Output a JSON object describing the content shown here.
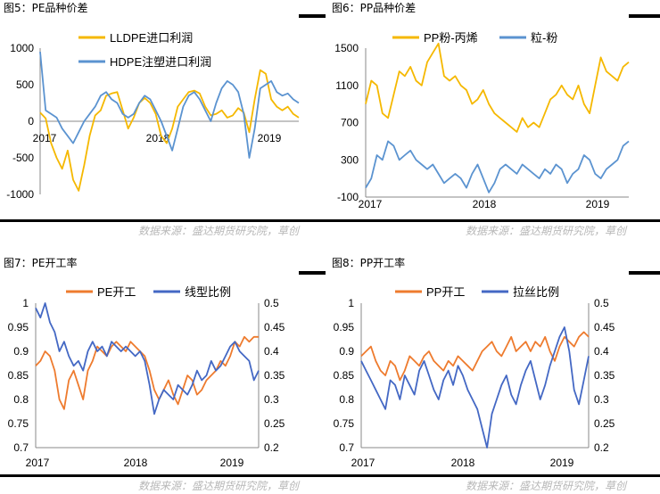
{
  "figures": [
    {
      "title": "图5：PE品种价差"
    },
    {
      "title": "图6：PP品种价差"
    },
    {
      "title": "图7：PE开工率"
    },
    {
      "title": "图8：PP开工率"
    }
  ],
  "source_text": "数据来源：盛达期货研究院，草创",
  "colors": {
    "gold": "#F5B800",
    "blue": "#5B93D0",
    "orange": "#EE7B2E",
    "navy": "#4468C4"
  },
  "chart_data": [
    {
      "type": "line",
      "xlabels": [
        "2017",
        "2018",
        "2019"
      ],
      "yticks": [
        "1000",
        "500",
        "0",
        "-500",
        "-1000"
      ],
      "ylim": [
        -1000,
        1000
      ],
      "x_range": [
        2017.0,
        2019.35
      ],
      "series": [
        {
          "name": "LLDPE进口利润",
          "color": "gold",
          "x": [
            2017.0,
            2017.05,
            2017.1,
            2017.15,
            2017.2,
            2017.25,
            2017.3,
            2017.35,
            2017.4,
            2017.45,
            2017.5,
            2017.55,
            2017.6,
            2017.65,
            2017.7,
            2017.75,
            2017.8,
            2017.85,
            2017.9,
            2017.95,
            2018.0,
            2018.05,
            2018.1,
            2018.15,
            2018.2,
            2018.25,
            2018.3,
            2018.35,
            2018.4,
            2018.45,
            2018.5,
            2018.55,
            2018.6,
            2018.65,
            2018.7,
            2018.75,
            2018.8,
            2018.85,
            2018.9,
            2018.95,
            2019.0,
            2019.05,
            2019.1,
            2019.15,
            2019.2,
            2019.25,
            2019.3,
            2019.35
          ],
          "y": [
            120,
            40,
            -300,
            -500,
            -650,
            -400,
            -800,
            -950,
            -600,
            -200,
            80,
            150,
            350,
            380,
            400,
            150,
            -100,
            50,
            250,
            320,
            250,
            100,
            -200,
            -300,
            -100,
            200,
            300,
            400,
            420,
            380,
            200,
            80,
            100,
            150,
            50,
            80,
            180,
            120,
            -150,
            300,
            700,
            650,
            300,
            200,
            150,
            200,
            100,
            50
          ]
        },
        {
          "name": "HDPE注塑进口利润",
          "color": "blue",
          "x": [
            2017.0,
            2017.05,
            2017.1,
            2017.15,
            2017.2,
            2017.25,
            2017.3,
            2017.35,
            2017.4,
            2017.45,
            2017.5,
            2017.55,
            2017.6,
            2017.65,
            2017.7,
            2017.75,
            2017.8,
            2017.85,
            2017.9,
            2017.95,
            2018.0,
            2018.05,
            2018.1,
            2018.15,
            2018.2,
            2018.25,
            2018.3,
            2018.35,
            2018.4,
            2018.45,
            2018.5,
            2018.55,
            2018.6,
            2018.65,
            2018.7,
            2018.75,
            2018.8,
            2018.85,
            2018.9,
            2018.95,
            2019.0,
            2019.05,
            2019.1,
            2019.15,
            2019.2,
            2019.25,
            2019.3,
            2019.35
          ],
          "y": [
            950,
            150,
            100,
            50,
            -100,
            -200,
            -300,
            -150,
            0,
            100,
            200,
            350,
            400,
            300,
            250,
            100,
            50,
            100,
            250,
            350,
            300,
            150,
            0,
            -200,
            -400,
            -100,
            200,
            350,
            400,
            300,
            150,
            0,
            250,
            450,
            550,
            500,
            400,
            100,
            -500,
            -100,
            450,
            500,
            550,
            400,
            350,
            380,
            300,
            250
          ]
        }
      ]
    },
    {
      "type": "line",
      "xlabels": [
        "2017",
        "2018",
        "2019"
      ],
      "yticks": [
        "1500",
        "1100",
        "700",
        "300",
        "-100"
      ],
      "ylim": [
        -100,
        1500
      ],
      "x_range": [
        2017.0,
        2019.35
      ],
      "series": [
        {
          "name": "PP粉-丙烯",
          "color": "gold",
          "x": [
            2017.0,
            2017.05,
            2017.1,
            2017.15,
            2017.2,
            2017.25,
            2017.3,
            2017.35,
            2017.4,
            2017.45,
            2017.5,
            2017.55,
            2017.6,
            2017.65,
            2017.7,
            2017.75,
            2017.8,
            2017.85,
            2017.9,
            2017.95,
            2018.0,
            2018.05,
            2018.1,
            2018.15,
            2018.2,
            2018.25,
            2018.3,
            2018.35,
            2018.4,
            2018.45,
            2018.5,
            2018.55,
            2018.6,
            2018.65,
            2018.7,
            2018.75,
            2018.8,
            2018.85,
            2018.9,
            2018.95,
            2019.0,
            2019.05,
            2019.1,
            2019.15,
            2019.2,
            2019.25,
            2019.3,
            2019.35
          ],
          "y": [
            900,
            1150,
            1100,
            800,
            750,
            1000,
            1250,
            1200,
            1300,
            1150,
            1100,
            1350,
            1450,
            1550,
            1200,
            1150,
            1200,
            1100,
            1050,
            900,
            950,
            1050,
            900,
            800,
            750,
            700,
            650,
            600,
            750,
            650,
            700,
            650,
            800,
            950,
            1000,
            1100,
            1000,
            950,
            1100,
            900,
            800,
            1100,
            1400,
            1250,
            1200,
            1150,
            1300,
            1350
          ]
        },
        {
          "name": "粒-粉",
          "color": "blue",
          "x": [
            2017.0,
            2017.05,
            2017.1,
            2017.15,
            2017.2,
            2017.25,
            2017.3,
            2017.35,
            2017.4,
            2017.45,
            2017.5,
            2017.55,
            2017.6,
            2017.65,
            2017.7,
            2017.75,
            2017.8,
            2017.85,
            2017.9,
            2017.95,
            2018.0,
            2018.05,
            2018.1,
            2018.15,
            2018.2,
            2018.25,
            2018.3,
            2018.35,
            2018.4,
            2018.45,
            2018.5,
            2018.55,
            2018.6,
            2018.65,
            2018.7,
            2018.75,
            2018.8,
            2018.85,
            2018.9,
            2018.95,
            2019.0,
            2019.05,
            2019.1,
            2019.15,
            2019.2,
            2019.25,
            2019.3,
            2019.35
          ],
          "y": [
            0,
            100,
            350,
            300,
            500,
            450,
            300,
            350,
            400,
            300,
            250,
            200,
            250,
            150,
            50,
            100,
            150,
            100,
            0,
            150,
            250,
            100,
            -50,
            50,
            200,
            250,
            200,
            150,
            250,
            200,
            150,
            100,
            200,
            150,
            250,
            200,
            50,
            150,
            200,
            350,
            300,
            150,
            100,
            200,
            250,
            300,
            450,
            500
          ]
        }
      ]
    },
    {
      "type": "line",
      "xlabels": [
        "2017",
        "2018",
        "2019"
      ],
      "yticks": [
        "1",
        "0.95",
        "0.9",
        "0.85",
        "0.8",
        "0.75",
        "0.7"
      ],
      "yticks_right": [
        "0.5",
        "0.45",
        "0.4",
        "0.35",
        "0.3",
        "0.25",
        "0.2"
      ],
      "ylim": [
        0.7,
        1.0
      ],
      "ylim_right": [
        0.2,
        0.5
      ],
      "x_range": [
        2017.0,
        2019.35
      ],
      "series": [
        {
          "name": "PE开工",
          "color": "orange",
          "axis": "left",
          "x": [
            2017.0,
            2017.05,
            2017.1,
            2017.15,
            2017.2,
            2017.25,
            2017.3,
            2017.35,
            2017.4,
            2017.45,
            2017.5,
            2017.55,
            2017.6,
            2017.65,
            2017.7,
            2017.75,
            2017.8,
            2017.85,
            2017.9,
            2017.95,
            2018.0,
            2018.05,
            2018.1,
            2018.15,
            2018.2,
            2018.25,
            2018.3,
            2018.35,
            2018.4,
            2018.45,
            2018.5,
            2018.55,
            2018.6,
            2018.65,
            2018.7,
            2018.75,
            2018.8,
            2018.85,
            2018.9,
            2018.95,
            2019.0,
            2019.05,
            2019.1,
            2019.15,
            2019.2,
            2019.25,
            2019.3,
            2019.35
          ],
          "y": [
            0.87,
            0.88,
            0.9,
            0.89,
            0.86,
            0.8,
            0.78,
            0.84,
            0.86,
            0.83,
            0.8,
            0.86,
            0.88,
            0.91,
            0.9,
            0.89,
            0.91,
            0.92,
            0.91,
            0.9,
            0.92,
            0.91,
            0.9,
            0.89,
            0.86,
            0.82,
            0.8,
            0.82,
            0.84,
            0.81,
            0.79,
            0.82,
            0.85,
            0.84,
            0.81,
            0.82,
            0.84,
            0.85,
            0.86,
            0.88,
            0.87,
            0.89,
            0.92,
            0.91,
            0.93,
            0.92,
            0.93,
            0.93
          ]
        },
        {
          "name": "线型比例",
          "color": "navy",
          "axis": "right",
          "x": [
            2017.0,
            2017.05,
            2017.1,
            2017.15,
            2017.2,
            2017.25,
            2017.3,
            2017.35,
            2017.4,
            2017.45,
            2017.5,
            2017.55,
            2017.6,
            2017.65,
            2017.7,
            2017.75,
            2017.8,
            2017.85,
            2017.9,
            2017.95,
            2018.0,
            2018.05,
            2018.1,
            2018.15,
            2018.2,
            2018.25,
            2018.3,
            2018.35,
            2018.4,
            2018.45,
            2018.5,
            2018.55,
            2018.6,
            2018.65,
            2018.7,
            2018.75,
            2018.8,
            2018.85,
            2018.9,
            2018.95,
            2019.0,
            2019.05,
            2019.1,
            2019.15,
            2019.2,
            2019.25,
            2019.3,
            2019.35
          ],
          "y": [
            0.49,
            0.47,
            0.5,
            0.46,
            0.44,
            0.4,
            0.42,
            0.39,
            0.37,
            0.38,
            0.36,
            0.4,
            0.42,
            0.4,
            0.41,
            0.39,
            0.42,
            0.41,
            0.4,
            0.41,
            0.4,
            0.39,
            0.4,
            0.38,
            0.33,
            0.27,
            0.3,
            0.32,
            0.31,
            0.3,
            0.33,
            0.32,
            0.31,
            0.33,
            0.36,
            0.34,
            0.35,
            0.38,
            0.36,
            0.37,
            0.39,
            0.41,
            0.42,
            0.4,
            0.39,
            0.38,
            0.34,
            0.36
          ]
        }
      ]
    },
    {
      "type": "line",
      "xlabels": [
        "2017",
        "2018",
        "2019"
      ],
      "yticks": [
        "1",
        "0.95",
        "0.9",
        "0.85",
        "0.8",
        "0.75",
        "0.7"
      ],
      "yticks_right": [
        "0.5",
        "0.45",
        "0.4",
        "0.35",
        "0.3",
        "0.25",
        "0.2"
      ],
      "ylim": [
        0.7,
        1.0
      ],
      "ylim_right": [
        0.2,
        0.5
      ],
      "x_range": [
        2017.0,
        2019.35
      ],
      "series": [
        {
          "name": "PP开工",
          "color": "orange",
          "axis": "left",
          "x": [
            2017.0,
            2017.05,
            2017.1,
            2017.15,
            2017.2,
            2017.25,
            2017.3,
            2017.35,
            2017.4,
            2017.45,
            2017.5,
            2017.55,
            2017.6,
            2017.65,
            2017.7,
            2017.75,
            2017.8,
            2017.85,
            2017.9,
            2017.95,
            2018.0,
            2018.05,
            2018.1,
            2018.15,
            2018.2,
            2018.25,
            2018.3,
            2018.35,
            2018.4,
            2018.45,
            2018.5,
            2018.55,
            2018.6,
            2018.65,
            2018.7,
            2018.75,
            2018.8,
            2018.85,
            2018.9,
            2018.95,
            2019.0,
            2019.05,
            2019.1,
            2019.15,
            2019.2,
            2019.25,
            2019.3,
            2019.35
          ],
          "y": [
            0.89,
            0.9,
            0.91,
            0.88,
            0.86,
            0.85,
            0.88,
            0.87,
            0.84,
            0.86,
            0.89,
            0.88,
            0.87,
            0.89,
            0.9,
            0.88,
            0.87,
            0.86,
            0.88,
            0.87,
            0.89,
            0.88,
            0.87,
            0.86,
            0.88,
            0.9,
            0.91,
            0.92,
            0.9,
            0.89,
            0.91,
            0.93,
            0.9,
            0.91,
            0.92,
            0.9,
            0.92,
            0.91,
            0.93,
            0.9,
            0.88,
            0.91,
            0.93,
            0.92,
            0.91,
            0.93,
            0.94,
            0.93
          ]
        },
        {
          "name": "拉丝比例",
          "color": "navy",
          "axis": "right",
          "x": [
            2017.0,
            2017.05,
            2017.1,
            2017.15,
            2017.2,
            2017.25,
            2017.3,
            2017.35,
            2017.4,
            2017.45,
            2017.5,
            2017.55,
            2017.6,
            2017.65,
            2017.7,
            2017.75,
            2017.8,
            2017.85,
            2017.9,
            2017.95,
            2018.0,
            2018.05,
            2018.1,
            2018.15,
            2018.2,
            2018.25,
            2018.3,
            2018.35,
            2018.4,
            2018.45,
            2018.5,
            2018.55,
            2018.6,
            2018.65,
            2018.7,
            2018.75,
            2018.8,
            2018.85,
            2018.9,
            2018.95,
            2019.0,
            2019.05,
            2019.1,
            2019.15,
            2019.2,
            2019.25,
            2019.3,
            2019.35
          ],
          "y": [
            0.38,
            0.36,
            0.34,
            0.32,
            0.3,
            0.28,
            0.34,
            0.33,
            0.3,
            0.35,
            0.33,
            0.31,
            0.36,
            0.38,
            0.35,
            0.32,
            0.3,
            0.34,
            0.36,
            0.33,
            0.37,
            0.35,
            0.32,
            0.3,
            0.28,
            0.24,
            0.2,
            0.27,
            0.3,
            0.33,
            0.35,
            0.31,
            0.29,
            0.33,
            0.36,
            0.38,
            0.34,
            0.3,
            0.33,
            0.37,
            0.4,
            0.43,
            0.45,
            0.4,
            0.32,
            0.29,
            0.34,
            0.39
          ]
        }
      ]
    }
  ]
}
